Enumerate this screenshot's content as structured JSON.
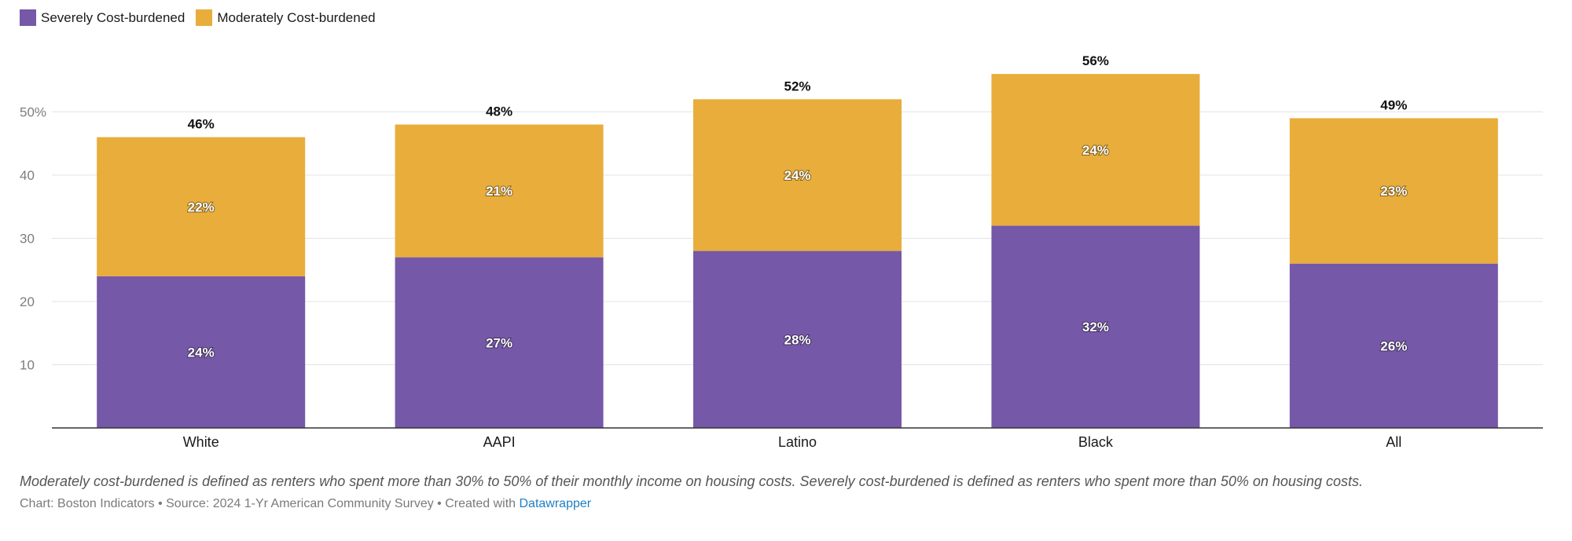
{
  "chart_data": {
    "type": "bar",
    "stacked": true,
    "categories": [
      "White",
      "AAPI",
      "Latino",
      "Black",
      "All"
    ],
    "series": [
      {
        "name": "Severely Cost-burdened",
        "color": "#7558a8",
        "values": [
          24,
          27,
          28,
          32,
          26
        ],
        "labels": [
          "24%",
          "27%",
          "28%",
          "32%",
          "26%"
        ]
      },
      {
        "name": "Moderately Cost-burdened",
        "color": "#e8ad3b",
        "values": [
          22,
          21,
          24,
          24,
          23
        ],
        "labels": [
          "22%",
          "21%",
          "24%",
          "24%",
          "23%"
        ]
      }
    ],
    "totals": [
      "46%",
      "48%",
      "52%",
      "56%",
      "49%"
    ],
    "totals_values": [
      46,
      48,
      52,
      56,
      49
    ],
    "yticks": [
      10,
      20,
      30,
      40,
      50
    ],
    "ytick_labels": [
      "10",
      "20",
      "30",
      "40",
      "50%"
    ],
    "ylim": [
      0,
      56
    ],
    "grid": true,
    "legend_position": "top-left"
  },
  "legend": {
    "severe": "Severely Cost-burdened",
    "moderate": "Moderately Cost-burdened",
    "severe_color": "#7558a8",
    "moderate_color": "#e8ad3b"
  },
  "notes": "Moderately cost-burdened is defined as renters who spent more than 30% to 50% of their monthly income on housing costs. Severely cost-burdened is defined as renters who spent more than 50% on housing costs.",
  "footer": {
    "prefix": "Chart: Boston Indicators • Source: 2024 1-Yr American Community Survey • Created with ",
    "link": "Datawrapper"
  }
}
